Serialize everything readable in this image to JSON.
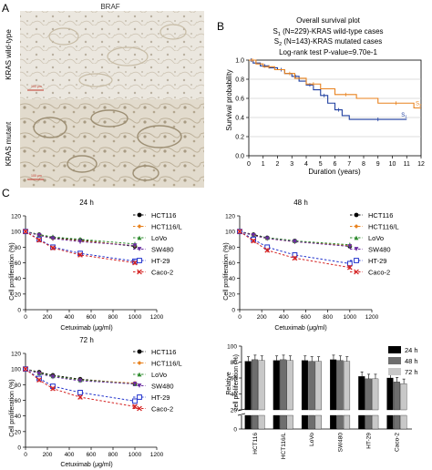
{
  "panels": {
    "a": "A",
    "b": "B",
    "c": "C"
  },
  "micrographs": {
    "title": "BRAF",
    "wildtype_label": "KRAS wild-type",
    "mutant_label": "KRAS mutant",
    "scalebar_label": "100 μm"
  },
  "survival": {
    "title": "Overall survival plot",
    "legend": [
      {
        "prefix": "S",
        "sub": "1",
        "text": " (N=229)-KRAS wild-type cases",
        "color": "#1f3f9f"
      },
      {
        "prefix": "S",
        "sub": "2",
        "text": " (N=143)-KRAS mutated cases",
        "color": "#e8821e"
      }
    ],
    "pvalue": "Log-rank test P-value=9.70e-1",
    "xlabel": "Duration (years)",
    "ylabel": "Survival probability",
    "curve_labels": [
      {
        "prefix": "S",
        "sub": "1"
      },
      {
        "prefix": "S",
        "sub": "2"
      }
    ]
  },
  "xaxis_label": "Cetuximab (μg/ml)",
  "yaxis_label": "Cell proliferation (%)",
  "bar_ylabel_line1": "Relative",
  "bar_ylabel_line2": "cell proliferation (%)",
  "line_legend": [
    "HCT116",
    "HCT116/L",
    "LoVo",
    "SW480",
    "HT-29",
    "Caco-2"
  ],
  "line_colors": [
    "#000000",
    "#e8821e",
    "#2e8b2e",
    "#6a2ca0",
    "#2233cc",
    "#d42020"
  ],
  "bar_legend": [
    "24 h",
    "48 h",
    "72 h"
  ],
  "bar_colors": [
    "#000000",
    "#6e6e6e",
    "#c8c8c8"
  ],
  "chart_data": [
    {
      "type": "line",
      "title": "Overall survival plot",
      "xlabel": "Duration (years)",
      "ylabel": "Survival probability",
      "xlim": [
        0,
        12
      ],
      "ylim": [
        0,
        1.0
      ],
      "xticks": [
        0,
        1,
        2,
        3,
        4,
        5,
        6,
        7,
        8,
        9,
        10,
        11,
        12
      ],
      "yticks": [
        0,
        0.2,
        0.4,
        0.6,
        0.8,
        1.0
      ],
      "grid": "horizontal",
      "series": [
        {
          "name": "S1 (N=229)-KRAS wild-type cases",
          "color": "#1f3f9f",
          "step": true,
          "x": [
            0,
            0.3,
            0.8,
            1.4,
            2.0,
            2.5,
            3.0,
            3.5,
            4.0,
            4.5,
            5.0,
            5.5,
            6.0,
            6.5,
            7.0,
            11.0
          ],
          "y": [
            1.0,
            0.97,
            0.94,
            0.92,
            0.9,
            0.86,
            0.83,
            0.78,
            0.74,
            0.69,
            0.63,
            0.55,
            0.48,
            0.42,
            0.38,
            0.38
          ]
        },
        {
          "name": "S2 (N=143)-KRAS mutated cases",
          "color": "#e8821e",
          "step": true,
          "x": [
            0,
            0.5,
            1.0,
            1.8,
            2.5,
            3.2,
            4.0,
            5.0,
            6.0,
            7.5,
            9.0,
            11.5,
            12.0
          ],
          "y": [
            1.0,
            0.96,
            0.93,
            0.9,
            0.86,
            0.81,
            0.75,
            0.7,
            0.64,
            0.6,
            0.55,
            0.5,
            0.5
          ]
        }
      ]
    },
    {
      "type": "line",
      "title": "24 h",
      "xlabel": "Cetuximab (μg/ml)",
      "ylabel": "Cell proliferation (%)",
      "x": [
        0,
        125,
        250,
        500,
        1000
      ],
      "xlim": [
        0,
        1200
      ],
      "xticks": [
        0,
        200,
        400,
        600,
        800,
        1000,
        1200
      ],
      "ylim": [
        0,
        120
      ],
      "yticks": [
        0,
        20,
        40,
        60,
        80,
        100,
        120
      ],
      "series": [
        {
          "name": "HCT116",
          "values": [
            100,
            96,
            92,
            89,
            81
          ]
        },
        {
          "name": "HCT116/L",
          "values": [
            100,
            95,
            91,
            88,
            82
          ]
        },
        {
          "name": "LoVo",
          "values": [
            100,
            96,
            93,
            90,
            84
          ]
        },
        {
          "name": "SW480",
          "values": [
            100,
            95,
            91,
            87,
            82
          ]
        },
        {
          "name": "HT-29",
          "values": [
            100,
            90,
            80,
            72,
            62
          ]
        },
        {
          "name": "Caco-2",
          "values": [
            100,
            89,
            79,
            70,
            60
          ]
        }
      ]
    },
    {
      "type": "line",
      "title": "48 h",
      "xlabel": "Cetuximab (μg/ml)",
      "ylabel": "Cell proliferation (%)",
      "x": [
        0,
        125,
        250,
        500,
        1000
      ],
      "xlim": [
        0,
        1200
      ],
      "xticks": [
        0,
        200,
        400,
        600,
        800,
        1000,
        1200
      ],
      "ylim": [
        0,
        120
      ],
      "yticks": [
        0,
        20,
        40,
        60,
        80,
        100,
        120
      ],
      "series": [
        {
          "name": "HCT116",
          "values": [
            100,
            96,
            92,
            88,
            81
          ]
        },
        {
          "name": "HCT116/L",
          "values": [
            100,
            95,
            91,
            87,
            82
          ]
        },
        {
          "name": "LoVo",
          "values": [
            100,
            95,
            92,
            88,
            83
          ]
        },
        {
          "name": "SW480",
          "values": [
            100,
            95,
            91,
            87,
            81
          ]
        },
        {
          "name": "HT-29",
          "values": [
            100,
            90,
            80,
            70,
            59
          ]
        },
        {
          "name": "Caco-2",
          "values": [
            100,
            88,
            76,
            66,
            54
          ]
        }
      ]
    },
    {
      "type": "line",
      "title": "72 h",
      "xlabel": "Cetuximab (μg/ml)",
      "ylabel": "Cell proliferation (%)",
      "x": [
        0,
        125,
        250,
        500,
        1000
      ],
      "xlim": [
        0,
        1200
      ],
      "xticks": [
        0,
        200,
        400,
        600,
        800,
        1000,
        1200
      ],
      "ylim": [
        0,
        120
      ],
      "yticks": [
        0,
        20,
        40,
        60,
        80,
        100,
        120
      ],
      "series": [
        {
          "name": "HCT116",
          "values": [
            100,
            96,
            92,
            87,
            81
          ]
        },
        {
          "name": "HCT116/L",
          "values": [
            100,
            95,
            91,
            86,
            82
          ]
        },
        {
          "name": "LoVo",
          "values": [
            100,
            95,
            91,
            86,
            81
          ]
        },
        {
          "name": "SW480",
          "values": [
            100,
            94,
            90,
            85,
            81
          ]
        },
        {
          "name": "HT-29",
          "values": [
            100,
            88,
            78,
            70,
            59
          ]
        },
        {
          "name": "Caco-2",
          "values": [
            100,
            86,
            75,
            64,
            52
          ]
        }
      ]
    },
    {
      "type": "bar",
      "ylabel": "Relative cell proliferation (%)",
      "categories": [
        "HCT116",
        "HCT116/L",
        "LoVo",
        "SW480",
        "HT-29",
        "Caco-2"
      ],
      "ylim": [
        0,
        100
      ],
      "yticks": [
        0,
        20,
        40,
        60,
        80,
        100
      ],
      "axis_break": true,
      "series": [
        {
          "name": "24 h",
          "values": [
            81,
            82,
            82,
            83,
            62,
            60
          ]
        },
        {
          "name": "48 h",
          "values": [
            83,
            83,
            81,
            82,
            59,
            55
          ]
        },
        {
          "name": "72 h",
          "values": [
            82,
            82,
            81,
            81,
            59,
            53
          ]
        }
      ]
    }
  ]
}
